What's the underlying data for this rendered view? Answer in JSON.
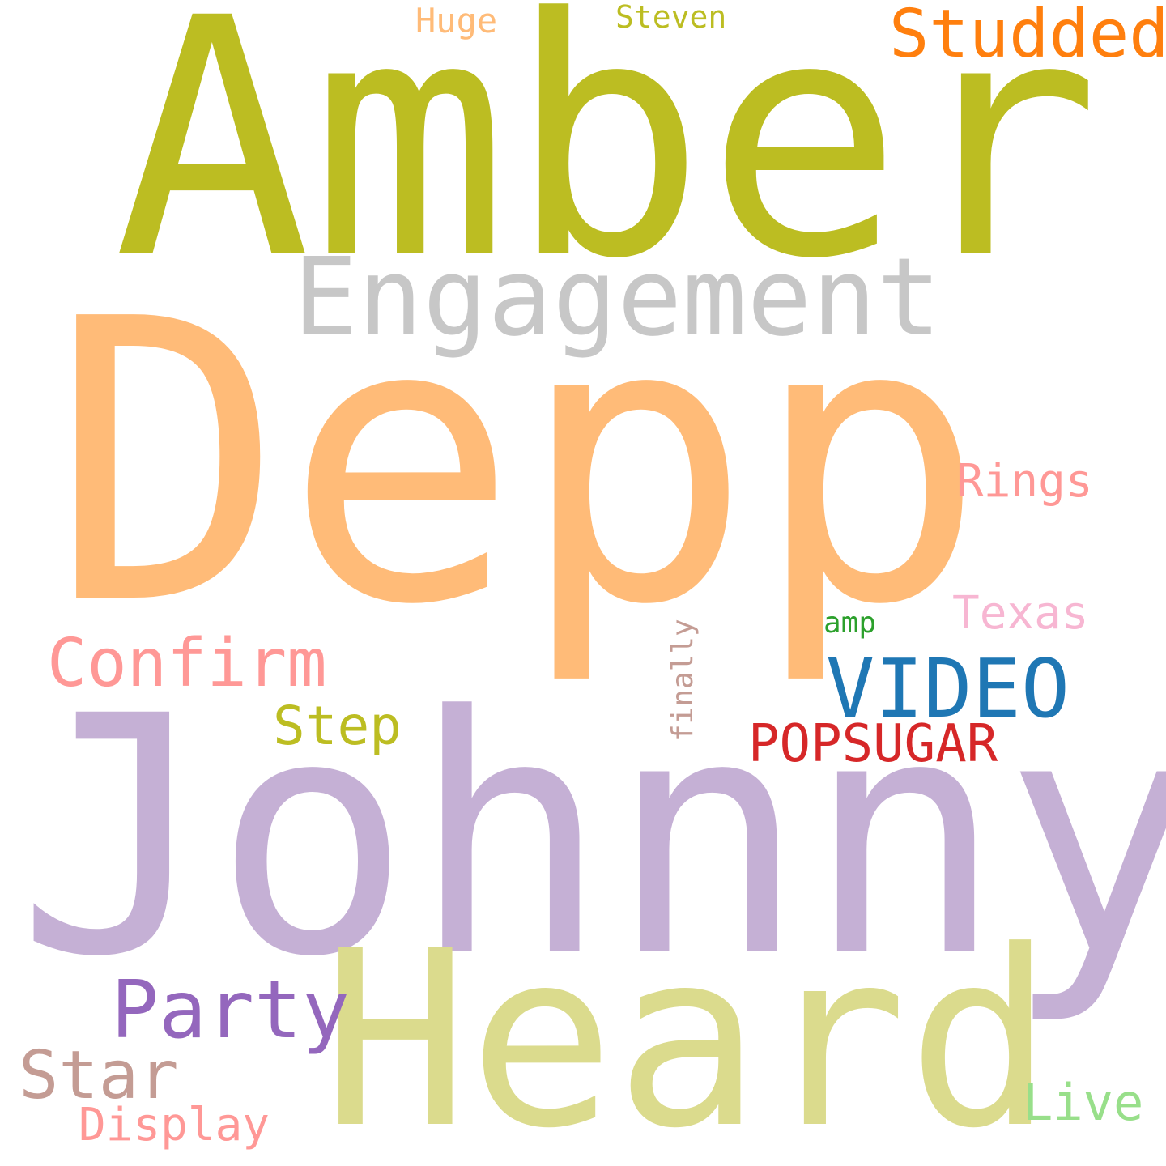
{
  "words": [
    {
      "id": "amber",
      "text": "Amber",
      "color": "#bcbd22",
      "orientation": "horizontal"
    },
    {
      "id": "engagement",
      "text": "Engagement",
      "color": "#c7c7c7",
      "orientation": "horizontal"
    },
    {
      "id": "depp",
      "text": "Depp",
      "color": "#ffbb78",
      "orientation": "horizontal"
    },
    {
      "id": "johnny",
      "text": "Johnny",
      "color": "#c5b0d5",
      "orientation": "horizontal"
    },
    {
      "id": "heard",
      "text": "Heard",
      "color": "#dbdb8d",
      "orientation": "horizontal"
    },
    {
      "id": "studded",
      "text": "Studded",
      "color": "#ff7f0e",
      "orientation": "horizontal"
    },
    {
      "id": "huge",
      "text": "Huge",
      "color": "#ffbb78",
      "orientation": "horizontal"
    },
    {
      "id": "steven",
      "text": "Steven",
      "color": "#bcbd22",
      "orientation": "horizontal"
    },
    {
      "id": "rings",
      "text": "Rings",
      "color": "#ff9896",
      "orientation": "horizontal"
    },
    {
      "id": "texas",
      "text": "Texas",
      "color": "#f7b6d2",
      "orientation": "horizontal"
    },
    {
      "id": "amp",
      "text": "amp",
      "color": "#2ca02c",
      "orientation": "horizontal"
    },
    {
      "id": "finally",
      "text": "finally",
      "color": "#c49c94",
      "orientation": "vertical"
    },
    {
      "id": "confirm",
      "text": "Confirm",
      "color": "#ff9896",
      "orientation": "horizontal"
    },
    {
      "id": "video",
      "text": "VIDEO",
      "color": "#1f77b4",
      "orientation": "horizontal"
    },
    {
      "id": "step",
      "text": "Step",
      "color": "#bcbd22",
      "orientation": "horizontal"
    },
    {
      "id": "popsugar",
      "text": "POPSUGAR",
      "color": "#d62728",
      "orientation": "horizontal"
    },
    {
      "id": "party",
      "text": "Party",
      "color": "#9467bd",
      "orientation": "horizontal"
    },
    {
      "id": "star",
      "text": "Star",
      "color": "#c49c94",
      "orientation": "horizontal"
    },
    {
      "id": "display",
      "text": "Display",
      "color": "#ff9896",
      "orientation": "horizontal"
    },
    {
      "id": "live",
      "text": "Live",
      "color": "#98df8a",
      "orientation": "horizontal"
    }
  ]
}
